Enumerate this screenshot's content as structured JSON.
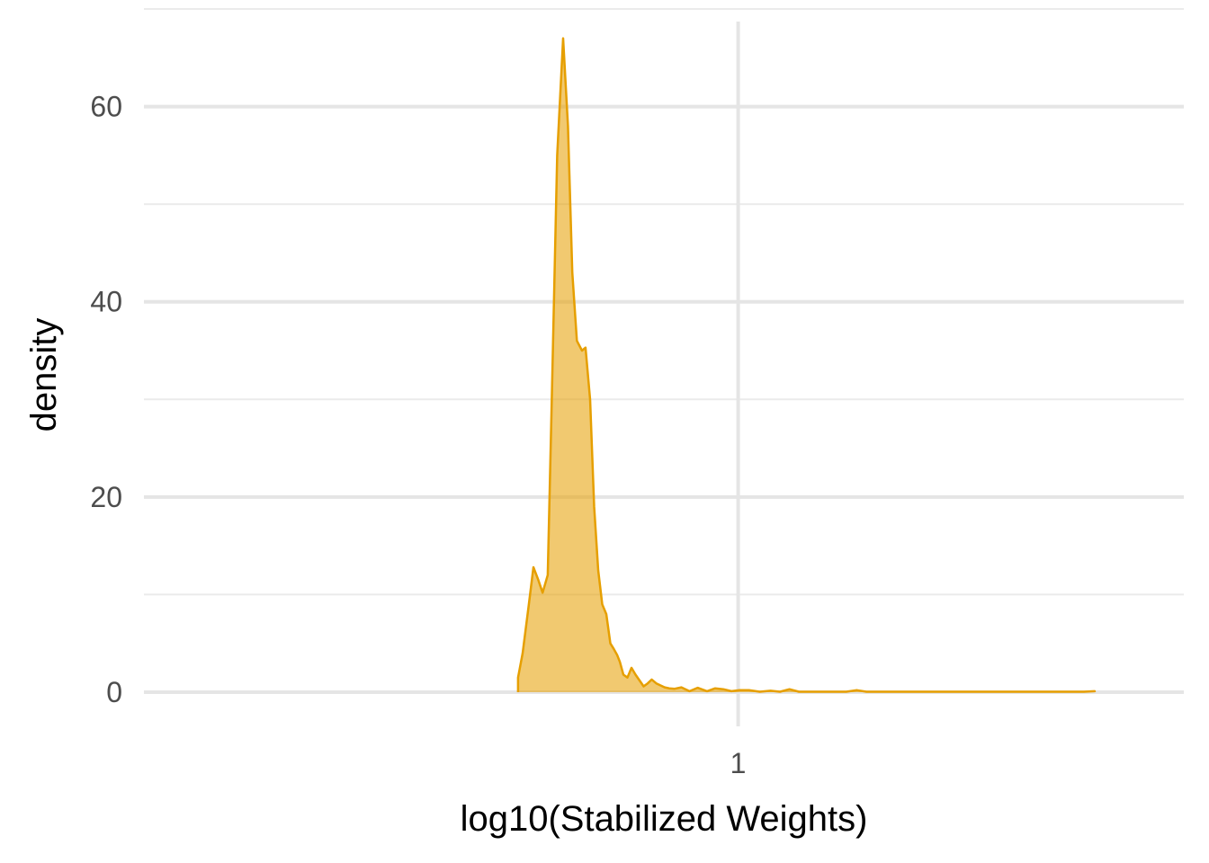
{
  "chart_data": {
    "type": "area",
    "title": "",
    "xlabel": "log10(Stabilized Weights)",
    "ylabel": "density",
    "x_scale": "log10",
    "x_ticks": [
      {
        "value": 1,
        "label": "1"
      }
    ],
    "xlim": [
      0.78,
      1.165
    ],
    "y_ticks": [
      {
        "value": 0,
        "label": "0"
      },
      {
        "value": 20,
        "label": "20"
      },
      {
        "value": 40,
        "label": "40"
      },
      {
        "value": 60,
        "label": "60"
      }
    ],
    "y_minor_ticks": [
      10,
      30,
      50,
      70
    ],
    "ylim": [
      -3.5,
      70
    ],
    "grid": true,
    "fill_color": "#E69F00",
    "series": [
      {
        "x": [
          0.9185,
          0.9202,
          0.9225,
          0.9242,
          0.926,
          0.9276,
          0.9295,
          0.931,
          0.933,
          0.9352,
          0.937,
          0.9386,
          0.9403,
          0.9422,
          0.9435,
          0.9452,
          0.9467,
          0.9482,
          0.9497,
          0.9512,
          0.9527,
          0.954,
          0.9552,
          0.9562,
          0.9575,
          0.959,
          0.9605,
          0.962,
          0.9635,
          0.965,
          0.9665,
          0.968,
          0.9697,
          0.9712,
          0.9728,
          0.9745,
          0.9765,
          0.979,
          0.982,
          0.985,
          0.9885,
          0.9915,
          0.9945,
          0.9975,
          1.0005,
          1.004,
          1.008,
          1.012,
          1.0155,
          1.019,
          1.0225,
          1.0265,
          1.031,
          1.0355,
          1.04,
          1.044,
          1.0475,
          1.052,
          1.057,
          1.062,
          1.066,
          1.07,
          1.074,
          1.079,
          1.083,
          1.088,
          1.092,
          1.096,
          1.101,
          1.1045,
          1.11,
          1.116,
          1.119,
          1.123,
          1.128,
          1.132
        ],
        "y": [
          1.5,
          4,
          9,
          12.8,
          11.5,
          10.2,
          12,
          30,
          55,
          67,
          58,
          43,
          36,
          35,
          35.3,
          30,
          19,
          12.5,
          9,
          8,
          5,
          4.4,
          3.8,
          3.1,
          1.8,
          1.5,
          2.5,
          1.8,
          1.2,
          0.6,
          0.9,
          1.3,
          0.9,
          0.7,
          0.5,
          0.4,
          0.35,
          0.5,
          0.1,
          0.45,
          0.1,
          0.4,
          0.3,
          0.1,
          0.2,
          0.2,
          0.05,
          0.15,
          0.05,
          0.3,
          0.05,
          0.05,
          0.05,
          0.05,
          0.05,
          0.2,
          0.05,
          0.05,
          0.05,
          0.05,
          0.05,
          0.05,
          0.05,
          0.05,
          0.05,
          0.05,
          0.05,
          0.05,
          0.05,
          0.05,
          0.05,
          0.05,
          0.05,
          0.05,
          0.05,
          0.1
        ]
      }
    ]
  }
}
